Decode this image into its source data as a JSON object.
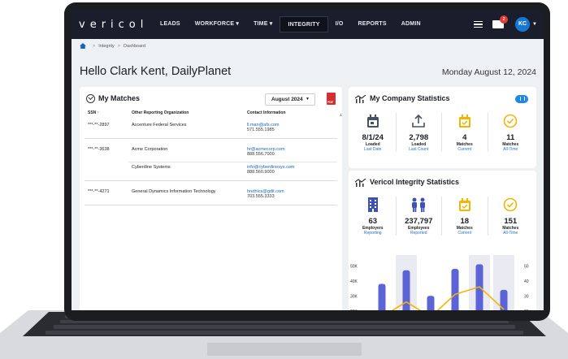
{
  "nav": {
    "logo": "vericol",
    "items": [
      "LEADS",
      "WORKFORCE ▾",
      "TIME ▾",
      "INTEGRITY",
      "I/O",
      "REPORTS",
      "ADMIN"
    ],
    "active": "INTEGRITY",
    "mail_badge": "2",
    "avatar": "KC"
  },
  "breadcrumb": [
    "Integrity",
    "Dashboard"
  ],
  "greeting": "Hello Clark Kent, DailyPlanet",
  "date": "Monday August 12, 2024",
  "matches": {
    "title": "My Matches",
    "month": "August 2024",
    "columns": [
      "SSN ↑",
      "Other Reporting Organization",
      "Contact Information"
    ],
    "rows": [
      {
        "ssn": "***-**-2897",
        "org": "Accenture Federal Services",
        "email": "ll.man@afs.com",
        "phone": "571.555.1985"
      },
      {
        "ssn": "***-**-3638",
        "org": "Acme Corporation",
        "email": "hr@acmecorp.com",
        "phone": "888.556.7000"
      },
      {
        "ssn": "",
        "org": "Cyberdine Systems",
        "email": "info@cyberdinesys.com",
        "phone": "888.560.9000"
      },
      {
        "ssn": "***-**-4271",
        "org": "General Dynamics Information Technology",
        "email": "hrethics@gdit.com",
        "phone": "703.555.3333"
      }
    ]
  },
  "company_stats": {
    "title": "My Company Statistics",
    "items": [
      {
        "value": "8/1/24",
        "label": "Loaded",
        "sub": "Last Date",
        "icon": "calendar-icon"
      },
      {
        "value": "2,798",
        "label": "Loaded",
        "sub": "Last Count",
        "icon": "upload-icon"
      },
      {
        "value": "4",
        "label": "Matches",
        "sub": "Current",
        "icon": "calendar-check-icon"
      },
      {
        "value": "11",
        "label": "Matches",
        "sub": "All-Time",
        "icon": "check-circle-icon"
      }
    ]
  },
  "vericol_stats": {
    "title": "Vericol Integrity Statistics",
    "items": [
      {
        "value": "63",
        "label": "Employers",
        "sub": "Reporting",
        "icon": "building-icon"
      },
      {
        "value": "237,797",
        "label": "Employees",
        "sub": "Reported",
        "icon": "people-icon"
      },
      {
        "value": "18",
        "label": "Matches",
        "sub": "Current",
        "icon": "calendar-check-icon"
      },
      {
        "value": "151",
        "label": "Matches",
        "sub": "All-Time",
        "icon": "check-circle-icon"
      }
    ]
  },
  "chart_data": {
    "type": "bar",
    "left_ticks": [
      "50K",
      "40K",
      "30K",
      "20K"
    ],
    "right_ticks": [
      "50",
      "40",
      "30",
      "20"
    ],
    "bar_values": [
      38000,
      47000,
      30000,
      48000,
      51000,
      34000
    ],
    "line_values": [
      16,
      26,
      16,
      31,
      36,
      21
    ],
    "ylim_left": [
      15000,
      55000
    ],
    "ylim_right": [
      15,
      55
    ],
    "colors": {
      "bar": "#5b63d6",
      "line": "#f5b400",
      "band": "#e9eaf2"
    }
  }
}
